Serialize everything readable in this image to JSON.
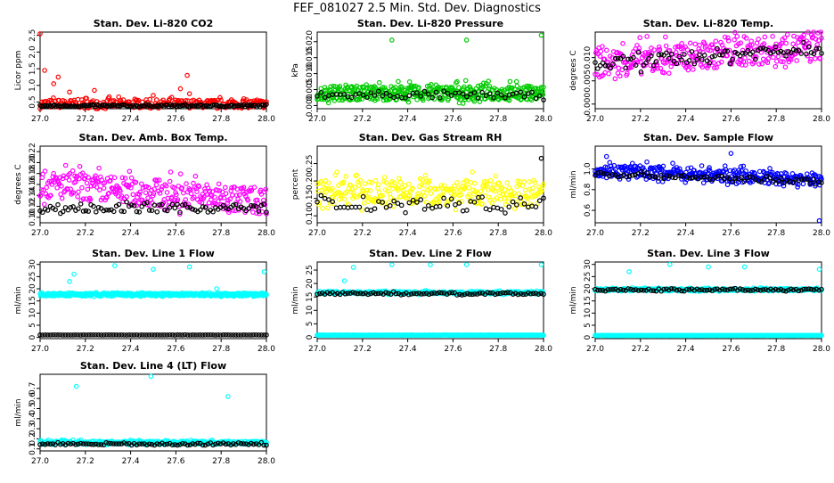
{
  "title": "FEF_081027  2.5 Min. Std. Dev. Diagnostics",
  "colors": {
    "black": "#000000",
    "red": "#ff0000",
    "green": "#00cc00",
    "magenta": "#ff00ff",
    "yellow": "#ffff00",
    "blue": "#0000ff",
    "cyan": "#00ffff"
  },
  "chart_data": [
    {
      "id": "co2",
      "type": "scatter",
      "title": "Stan. Dev. Li-820 CO2",
      "ylabel": "Licor ppm",
      "xlim": [
        27.0,
        28.0
      ],
      "ylim": [
        0.3,
        2.6
      ],
      "xticks": [
        "27.0",
        "27.2",
        "27.4",
        "27.6",
        "27.8",
        "28.0"
      ],
      "yticks": [
        {
          "v": 0.5,
          "label": "0.5"
        },
        {
          "v": 1.0,
          "label": "1.0"
        },
        {
          "v": 1.5,
          "label": "1.5"
        },
        {
          "v": 2.0,
          "label": "2.0"
        },
        {
          "v": 2.5,
          "label": "2.5"
        }
      ],
      "series": [
        {
          "name": "red",
          "color": "red",
          "n": 240,
          "base": 0.42,
          "spread": 0.25,
          "spikes": [
            [
              27.0,
              2.55
            ],
            [
              27.02,
              1.45
            ],
            [
              27.06,
              1.05
            ],
            [
              27.08,
              1.25
            ],
            [
              27.13,
              0.8
            ],
            [
              27.24,
              0.85
            ],
            [
              27.5,
              0.7
            ],
            [
              27.62,
              0.9
            ],
            [
              27.65,
              1.3
            ],
            [
              27.66,
              0.75
            ],
            [
              27.9,
              0.6
            ]
          ]
        },
        {
          "name": "black",
          "color": "black",
          "n": 140,
          "base": 0.38,
          "spread": 0.06
        }
      ]
    },
    {
      "id": "pressure",
      "type": "scatter",
      "title": "Stan. Dev. Li-820 Pressure",
      "ylabel": "kPa",
      "xlim": [
        27.0,
        28.0
      ],
      "ylim": [
        -0.001,
        0.023
      ],
      "xticks": [
        "27.0",
        "27.2",
        "27.4",
        "27.6",
        "27.8",
        "28.0"
      ],
      "yticks": [
        {
          "v": 0.0,
          "label": "0.000"
        },
        {
          "v": 0.005,
          "label": "0.005"
        },
        {
          "v": 0.01,
          "label": "0.010"
        },
        {
          "v": 0.015,
          "label": "0.015"
        },
        {
          "v": 0.02,
          "label": "0.020"
        }
      ],
      "series": [
        {
          "name": "green",
          "color": "green",
          "n": 420,
          "base": 0.0035,
          "spread": 0.0045,
          "spikes": [
            [
              27.33,
              0.0205
            ],
            [
              27.66,
              0.0205
            ],
            [
              27.99,
              0.022
            ]
          ]
        },
        {
          "name": "black",
          "color": "black",
          "n": 60,
          "base": 0.003,
          "spread": 0.002
        }
      ]
    },
    {
      "id": "temp",
      "type": "scatter",
      "title": "Stan. Dev. Li-820 Temp.",
      "ylabel": "degrees C",
      "xlim": [
        27.0,
        28.0
      ],
      "ylim": [
        -0.001,
        0.0155
      ],
      "xticks": [
        "27.0",
        "27.2",
        "27.4",
        "27.6",
        "27.8",
        "28.0"
      ],
      "yticks": [
        {
          "v": 0.0,
          "label": "0.000"
        },
        {
          "v": 0.005,
          "label": "0.005"
        },
        {
          "v": 0.01,
          "label": "0.010"
        }
      ],
      "series": [
        {
          "name": "magenta",
          "color": "magenta",
          "n": 320,
          "base": 0.008,
          "spread": 0.006,
          "trend": 0.004
        },
        {
          "name": "black",
          "color": "black",
          "n": 90,
          "base": 0.008,
          "spread": 0.003,
          "trend": 0.004
        }
      ]
    },
    {
      "id": "boxtemp",
      "type": "scatter",
      "title": "Stan. Dev. Amb. Box Temp.",
      "ylabel": "degrees C",
      "xlim": [
        27.0,
        28.0
      ],
      "ylim": [
        0.09,
        0.23
      ],
      "xticks": [
        "27.0",
        "27.2",
        "27.4",
        "27.6",
        "27.8",
        "28.0"
      ],
      "yticks": [
        {
          "v": 0.1,
          "label": "0.10"
        },
        {
          "v": 0.12,
          "label": "0.12"
        },
        {
          "v": 0.14,
          "label": "0.14"
        },
        {
          "v": 0.16,
          "label": "0.16"
        },
        {
          "v": 0.18,
          "label": "0.18"
        },
        {
          "v": 0.2,
          "label": "0.20"
        },
        {
          "v": 0.22,
          "label": "0.22"
        }
      ],
      "series": [
        {
          "name": "magenta",
          "color": "magenta",
          "n": 320,
          "base": 0.155,
          "spread": 0.05,
          "trend": -0.03
        },
        {
          "name": "black",
          "color": "black",
          "n": 90,
          "base": 0.115,
          "spread": 0.015
        }
      ]
    },
    {
      "id": "rh",
      "type": "scatter",
      "title": "Stan. Dev. Gas Stream RH",
      "ylabel": "percent",
      "xlim": [
        27.0,
        28.0
      ],
      "ylim": [
        0.08,
        0.3
      ],
      "xticks": [
        "27.0",
        "27.2",
        "27.4",
        "27.6",
        "27.8",
        "28.0"
      ],
      "yticks": [
        {
          "v": 0.1,
          "label": "0.10"
        },
        {
          "v": 0.15,
          "label": "0.15"
        },
        {
          "v": 0.2,
          "label": "0.20"
        },
        {
          "v": 0.25,
          "label": "0.25"
        }
      ],
      "series": [
        {
          "name": "yellow",
          "color": "yellow",
          "n": 300,
          "base": 0.16,
          "spread": 0.07
        },
        {
          "name": "black",
          "color": "black",
          "n": 60,
          "base": 0.13,
          "spread": 0.04,
          "spikes": [
            [
              27.99,
              0.265
            ]
          ]
        }
      ]
    },
    {
      "id": "sampleflow",
      "type": "scatter",
      "title": "Stan. Dev. Sample Flow",
      "ylabel": "ml/min",
      "xlim": [
        27.0,
        28.0
      ],
      "ylim": [
        0.48,
        1.22
      ],
      "xticks": [
        "27.0",
        "27.2",
        "27.4",
        "27.6",
        "27.8",
        "28.0"
      ],
      "yticks": [
        {
          "v": 0.6,
          "label": "0.6"
        },
        {
          "v": 0.8,
          "label": "0.8"
        },
        {
          "v": 1.0,
          "label": "1.0"
        }
      ],
      "series": [
        {
          "name": "blue",
          "color": "blue",
          "n": 360,
          "base": 0.98,
          "spread": 0.12,
          "trend": -0.1,
          "spikes": [
            [
              27.99,
              0.5
            ],
            [
              27.05,
              1.12
            ],
            [
              27.6,
              1.15
            ]
          ]
        },
        {
          "name": "black",
          "color": "black",
          "n": 80,
          "base": 0.95,
          "spread": 0.05,
          "trend": -0.08
        }
      ]
    },
    {
      "id": "line1",
      "type": "scatter",
      "title": "Stan. Dev. Line 1 Flow",
      "ylabel": "ml/min",
      "xlim": [
        27.0,
        28.0
      ],
      "ylim": [
        -0.5,
        31
      ],
      "xticks": [
        "27.0",
        "27.2",
        "27.4",
        "27.6",
        "27.8",
        "28.0"
      ],
      "yticks": [
        {
          "v": 0,
          "label": "0"
        },
        {
          "v": 5,
          "label": "5"
        },
        {
          "v": 10,
          "label": "10"
        },
        {
          "v": 15,
          "label": "15"
        },
        {
          "v": 20,
          "label": "20"
        },
        {
          "v": 25,
          "label": "25"
        },
        {
          "v": 30,
          "label": "30"
        }
      ],
      "series": [
        {
          "name": "cyan",
          "color": "cyan",
          "n": 420,
          "base": 17.5,
          "spread": 1.2,
          "spikes": [
            [
              27.13,
              23
            ],
            [
              27.15,
              26
            ],
            [
              27.33,
              29.5
            ],
            [
              27.5,
              28
            ],
            [
              27.66,
              29
            ],
            [
              27.78,
              20
            ],
            [
              27.99,
              27
            ]
          ]
        },
        {
          "name": "black",
          "color": "black",
          "n": 90,
          "base": 1.0,
          "spread": 0.1
        }
      ]
    },
    {
      "id": "line2",
      "type": "scatter",
      "title": "Stan. Dev. Line 2 Flow",
      "ylabel": "ml/min",
      "xlim": [
        27.0,
        28.0
      ],
      "ylim": [
        -0.5,
        28
      ],
      "xticks": [
        "27.0",
        "27.2",
        "27.4",
        "27.6",
        "27.8",
        "28.0"
      ],
      "yticks": [
        {
          "v": 0,
          "label": "0"
        },
        {
          "v": 5,
          "label": "5"
        },
        {
          "v": 10,
          "label": "10"
        },
        {
          "v": 15,
          "label": "15"
        },
        {
          "v": 20,
          "label": "20"
        },
        {
          "v": 25,
          "label": "25"
        }
      ],
      "series": [
        {
          "name": "cyan-high",
          "color": "cyan",
          "n": 300,
          "base": 16.5,
          "spread": 1.0,
          "spikes": [
            [
              27.12,
              21
            ],
            [
              27.16,
              26
            ],
            [
              27.33,
              27
            ],
            [
              27.5,
              27
            ],
            [
              27.66,
              27
            ],
            [
              27.99,
              27
            ]
          ]
        },
        {
          "name": "cyan-low",
          "color": "cyan",
          "n": 300,
          "base": 0.8,
          "spread": 0.1
        },
        {
          "name": "black",
          "color": "black",
          "n": 90,
          "base": 16.2,
          "spread": 0.8
        }
      ]
    },
    {
      "id": "line3",
      "type": "scatter",
      "title": "Stan. Dev. Line 3 Flow",
      "ylabel": "ml/min",
      "xlim": [
        27.0,
        28.0
      ],
      "ylim": [
        -0.5,
        31
      ],
      "xticks": [
        "27.0",
        "27.2",
        "27.4",
        "27.6",
        "27.8",
        "28.0"
      ],
      "yticks": [
        {
          "v": 0,
          "label": "0"
        },
        {
          "v": 5,
          "label": "5"
        },
        {
          "v": 10,
          "label": "10"
        },
        {
          "v": 15,
          "label": "15"
        },
        {
          "v": 20,
          "label": "20"
        },
        {
          "v": 25,
          "label": "25"
        },
        {
          "v": 30,
          "label": "30"
        }
      ],
      "series": [
        {
          "name": "cyan-high",
          "color": "cyan",
          "n": 300,
          "base": 19.5,
          "spread": 1.0,
          "spikes": [
            [
              27.15,
              27
            ],
            [
              27.33,
              30
            ],
            [
              27.5,
              29
            ],
            [
              27.66,
              29
            ],
            [
              27.99,
              28
            ]
          ]
        },
        {
          "name": "cyan-low",
          "color": "cyan",
          "n": 300,
          "base": 0.8,
          "spread": 0.1
        },
        {
          "name": "black",
          "color": "black",
          "n": 90,
          "base": 19.5,
          "spread": 0.8
        }
      ]
    },
    {
      "id": "line4",
      "type": "scatter",
      "title": "Stan. Dev. Line 4 (LT) Flow",
      "ylabel": "ml/min",
      "xlim": [
        27.0,
        28.0
      ],
      "ylim": [
        0.08,
        0.84
      ],
      "xticks": [
        "27.0",
        "27.2",
        "27.4",
        "27.6",
        "27.8",
        "28.0"
      ],
      "yticks": [
        {
          "v": 0.1,
          "label": "0.1"
        },
        {
          "v": 0.2,
          "label": "0.2"
        },
        {
          "v": 0.3,
          "label": "0.3"
        },
        {
          "v": 0.4,
          "label": "0.4"
        },
        {
          "v": 0.5,
          "label": "0.5"
        },
        {
          "v": 0.6,
          "label": "0.6"
        },
        {
          "v": 0.7,
          "label": "0.7"
        }
      ],
      "series": [
        {
          "name": "cyan",
          "color": "cyan",
          "n": 360,
          "base": 0.16,
          "spread": 0.03,
          "spikes": [
            [
              27.16,
              0.72
            ],
            [
              27.49,
              0.82
            ],
            [
              27.83,
              0.62
            ]
          ]
        },
        {
          "name": "black",
          "color": "black",
          "n": 90,
          "base": 0.145,
          "spread": 0.02
        }
      ]
    }
  ]
}
